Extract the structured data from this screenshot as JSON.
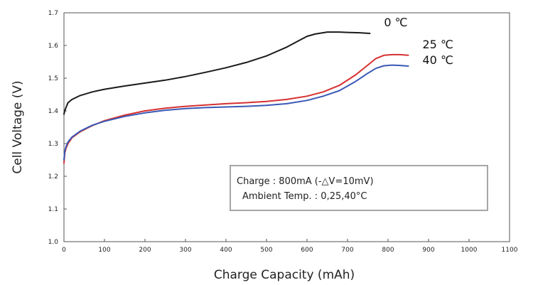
{
  "chart_data": {
    "type": "line",
    "title": "",
    "xlabel": "Charge Capacity (mAh)",
    "ylabel": "Cell Voltage (V)",
    "xlim": [
      0,
      1100
    ],
    "ylim": [
      1.0,
      1.7
    ],
    "xticks": [
      "0",
      "100",
      "200",
      "300",
      "400",
      "500",
      "600",
      "700",
      "800",
      "900",
      "1000",
      "1100"
    ],
    "yticks": [
      "1.0",
      "1.1",
      "1.2",
      "1.3",
      "1.4",
      "1.5",
      "1.6",
      "1.7"
    ],
    "grid": false,
    "series": [
      {
        "name": "0 ℃",
        "color": "#1a1a1a",
        "x": [
          0,
          2,
          5,
          10,
          20,
          40,
          70,
          100,
          150,
          200,
          250,
          300,
          350,
          400,
          450,
          500,
          550,
          580,
          600,
          620,
          650,
          680,
          700,
          730,
          755
        ],
        "y": [
          1.39,
          1.4,
          1.41,
          1.425,
          1.435,
          1.447,
          1.458,
          1.466,
          1.476,
          1.485,
          1.494,
          1.505,
          1.518,
          1.532,
          1.548,
          1.568,
          1.595,
          1.615,
          1.628,
          1.635,
          1.641,
          1.641,
          1.64,
          1.639,
          1.637
        ]
      },
      {
        "name": "25 ℃",
        "color": "#d63030",
        "x": [
          0,
          2,
          5,
          10,
          20,
          40,
          70,
          100,
          150,
          200,
          250,
          300,
          350,
          400,
          450,
          500,
          550,
          600,
          640,
          680,
          720,
          750,
          770,
          790,
          810,
          830,
          850
        ],
        "y": [
          1.24,
          1.27,
          1.285,
          1.3,
          1.318,
          1.336,
          1.355,
          1.37,
          1.387,
          1.4,
          1.408,
          1.414,
          1.418,
          1.422,
          1.425,
          1.429,
          1.435,
          1.445,
          1.458,
          1.478,
          1.51,
          1.54,
          1.56,
          1.57,
          1.572,
          1.572,
          1.57
        ]
      },
      {
        "name": "40 ℃",
        "color": "#3a59b5",
        "x": [
          0,
          2,
          5,
          10,
          20,
          40,
          70,
          100,
          150,
          200,
          250,
          300,
          350,
          400,
          450,
          500,
          550,
          600,
          640,
          680,
          720,
          750,
          770,
          790,
          810,
          830,
          850
        ],
        "y": [
          1.25,
          1.275,
          1.29,
          1.305,
          1.32,
          1.338,
          1.356,
          1.368,
          1.383,
          1.394,
          1.402,
          1.407,
          1.41,
          1.412,
          1.414,
          1.417,
          1.422,
          1.432,
          1.445,
          1.462,
          1.49,
          1.515,
          1.53,
          1.538,
          1.54,
          1.539,
          1.537
        ]
      }
    ],
    "annotation": {
      "line1": "Charge : 800mA (-△V=10mV)",
      "line2": "Ambient Temp. : 0,25,40°C"
    }
  }
}
